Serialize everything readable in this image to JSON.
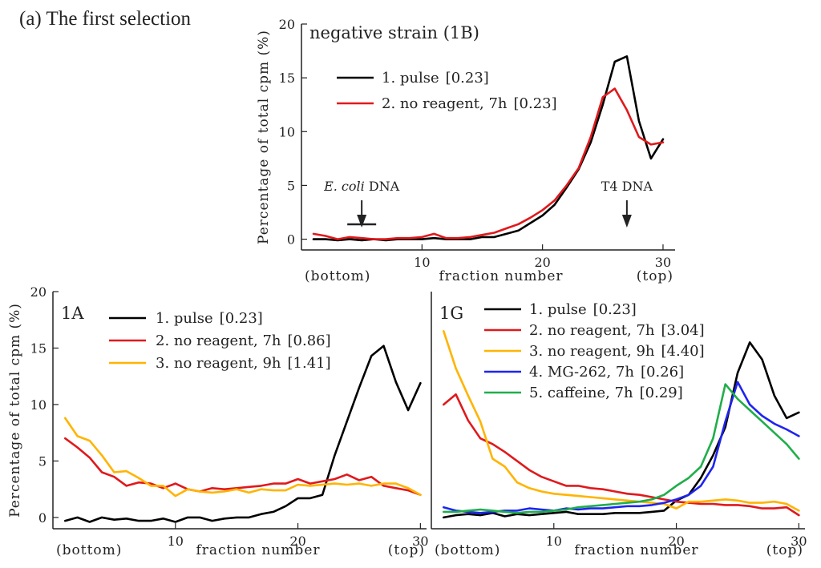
{
  "figure_title": "(a) The first selection",
  "chart_data": [
    {
      "id": "1B",
      "type": "line",
      "title": "negative strain (1B)",
      "ylabel": "Percentage of total cpm (%)",
      "xlabel": "fraction number",
      "x_left_note": "(bottom)",
      "x_right_note": "(top)",
      "xlim": [
        0,
        31
      ],
      "ylim": [
        -1,
        20
      ],
      "xticks": [
        10,
        20,
        30
      ],
      "yticks": [
        0,
        5,
        10,
        15,
        20
      ],
      "legend": {
        "location": "upper-left",
        "entries": [
          {
            "color": "#000000",
            "text": "1. pulse",
            "value": "[0.23]"
          },
          {
            "color": "#e0191c",
            "text": "2. no reagent, 7h",
            "value": "[0.23]"
          }
        ]
      },
      "annotations": [
        {
          "italic": "E. coli",
          "text": " DNA",
          "x": 5
        },
        {
          "italic": "",
          "text": "T4 DNA",
          "x": 27
        }
      ],
      "x": [
        1,
        2,
        3,
        4,
        5,
        6,
        7,
        8,
        9,
        10,
        11,
        12,
        13,
        14,
        15,
        16,
        17,
        18,
        19,
        20,
        21,
        22,
        23,
        24,
        25,
        26,
        27,
        28,
        29,
        30
      ],
      "series": [
        {
          "name": "1. pulse",
          "color": "#000000",
          "values": [
            0,
            0,
            -0.1,
            0,
            -0.1,
            0,
            -0.1,
            0,
            0,
            0,
            0.1,
            0,
            0,
            0,
            0.2,
            0.2,
            0.5,
            0.8,
            1.5,
            2.2,
            3.2,
            4.8,
            6.5,
            9,
            12.5,
            16.5,
            17,
            11,
            7.5,
            9.3
          ]
        },
        {
          "name": "2. no reagent, 7h",
          "color": "#e0191c",
          "values": [
            0.5,
            0.3,
            0,
            0.2,
            0.1,
            0,
            0,
            0.1,
            0.1,
            0.2,
            0.5,
            0.1,
            0.1,
            0.2,
            0.4,
            0.6,
            1,
            1.4,
            2,
            2.7,
            3.6,
            5,
            6.6,
            9.5,
            13.2,
            14,
            12,
            9.5,
            8.8,
            9
          ]
        }
      ]
    },
    {
      "id": "1A",
      "type": "line",
      "title": "1A",
      "ylabel": "Percentage of total cpm (%)",
      "xlabel": "fraction number",
      "x_left_note": "(bottom)",
      "x_right_note": "(top)",
      "xlim": [
        0,
        30.5
      ],
      "ylim": [
        -1,
        20
      ],
      "xticks": [
        10,
        20,
        30
      ],
      "yticks": [
        0,
        5,
        10,
        15,
        20
      ],
      "legend": {
        "location": "upper-center",
        "entries": [
          {
            "color": "#000000",
            "text": "1. pulse",
            "value": "[0.23]"
          },
          {
            "color": "#e0191c",
            "text": "2. no reagent, 7h",
            "value": "[0.86]"
          },
          {
            "color": "#ffb400",
            "text": "3. no reagent, 9h",
            "value": "[1.41]"
          }
        ]
      },
      "x": [
        1,
        2,
        3,
        4,
        5,
        6,
        7,
        8,
        9,
        10,
        11,
        12,
        13,
        14,
        15,
        16,
        17,
        18,
        19,
        20,
        21,
        22,
        23,
        24,
        25,
        26,
        27,
        28,
        29,
        30
      ],
      "series": [
        {
          "name": "1. pulse",
          "color": "#000000",
          "values": [
            -0.3,
            0,
            -0.4,
            0,
            -0.2,
            -0.1,
            -0.3,
            -0.3,
            -0.1,
            -0.4,
            0,
            0,
            -0.3,
            -0.1,
            0,
            0,
            0.3,
            0.5,
            1,
            1.7,
            1.7,
            2,
            5.5,
            8.5,
            11.5,
            14.3,
            15.2,
            12,
            9.5,
            11.9
          ]
        },
        {
          "name": "2. no reagent, 7h",
          "color": "#e0191c",
          "values": [
            7,
            6.2,
            5.3,
            4,
            3.6,
            2.8,
            3.1,
            3,
            2.6,
            3,
            2.5,
            2.3,
            2.6,
            2.5,
            2.6,
            2.7,
            2.8,
            3,
            3,
            3.4,
            3,
            3.2,
            3.4,
            3.8,
            3.3,
            3.6,
            2.8,
            2.6,
            2.4,
            2
          ]
        },
        {
          "name": "3. no reagent, 9h",
          "color": "#ffb400",
          "values": [
            8.8,
            7.2,
            6.8,
            5.5,
            4,
            4.1,
            3.5,
            2.8,
            2.8,
            1.9,
            2.5,
            2.3,
            2.2,
            2.3,
            2.5,
            2.2,
            2.5,
            2.4,
            2.4,
            2.9,
            2.8,
            2.9,
            3,
            2.9,
            3,
            2.8,
            3,
            3,
            2.6,
            2
          ]
        }
      ]
    },
    {
      "id": "1G",
      "type": "line",
      "title": "1G",
      "xlabel": "fraction number",
      "x_left_note": "(bottom)",
      "x_right_note": "(top)",
      "xlim": [
        0,
        30.5
      ],
      "ylim": [
        -1,
        20
      ],
      "xticks": [
        10,
        20,
        30
      ],
      "yticks": [],
      "legend": {
        "location": "upper-center",
        "entries": [
          {
            "color": "#000000",
            "text": "1. pulse",
            "value": "[0.23]"
          },
          {
            "color": "#e0191c",
            "text": "2. no reagent, 7h",
            "value": "[3.04]"
          },
          {
            "color": "#ffb400",
            "text": "3. no reagent, 9h",
            "value": "[4.40]"
          },
          {
            "color": "#1e24f0",
            "text": "4. MG-262, 7h",
            "value": "[0.26]"
          },
          {
            "color": "#1fae4a",
            "text": "5. caffeine, 7h",
            "value": "[0.29]"
          }
        ]
      },
      "x": [
        1,
        2,
        3,
        4,
        5,
        6,
        7,
        8,
        9,
        10,
        11,
        12,
        13,
        14,
        15,
        16,
        17,
        18,
        19,
        20,
        21,
        22,
        23,
        24,
        25,
        26,
        27,
        28,
        29,
        30
      ],
      "series": [
        {
          "name": "1. pulse",
          "color": "#000000",
          "values": [
            0,
            0.2,
            0.3,
            0.2,
            0.4,
            0.1,
            0.3,
            0.2,
            0.3,
            0.4,
            0.5,
            0.3,
            0.3,
            0.3,
            0.4,
            0.4,
            0.4,
            0.5,
            0.6,
            1.5,
            2,
            3.5,
            5.5,
            8,
            12.8,
            15.5,
            14,
            10.8,
            8.8,
            9.3
          ]
        },
        {
          "name": "2. no reagent, 7h",
          "color": "#e0191c",
          "values": [
            10,
            10.9,
            8.6,
            7,
            6.5,
            5.8,
            5,
            4.2,
            3.6,
            3.2,
            2.8,
            2.8,
            2.6,
            2.5,
            2.3,
            2.1,
            2,
            1.8,
            1.6,
            1.4,
            1.3,
            1.2,
            1.2,
            1.1,
            1.1,
            1,
            0.8,
            0.8,
            0.9,
            0.2
          ]
        },
        {
          "name": "3. no reagent, 9h",
          "color": "#ffb400",
          "values": [
            16.5,
            13.2,
            10.8,
            8.5,
            5.2,
            4.5,
            3.1,
            2.6,
            2.3,
            2.1,
            2,
            1.9,
            1.8,
            1.7,
            1.6,
            1.5,
            1.4,
            1.3,
            1.2,
            0.8,
            1.4,
            1.4,
            1.5,
            1.6,
            1.5,
            1.3,
            1.3,
            1.4,
            1.2,
            0.6
          ]
        },
        {
          "name": "4. MG-262, 7h",
          "color": "#1e24f0",
          "values": [
            0.9,
            0.6,
            0.5,
            0.4,
            0.5,
            0.6,
            0.6,
            0.8,
            0.7,
            0.6,
            0.8,
            0.7,
            0.8,
            0.8,
            0.9,
            1,
            1,
            1.1,
            1.3,
            1.6,
            2,
            2.8,
            4.5,
            8.5,
            12,
            10,
            9,
            8.3,
            7.8,
            7.2
          ]
        },
        {
          "name": "5. caffeine, 7h",
          "color": "#1fae4a",
          "values": [
            0.5,
            0.5,
            0.6,
            0.7,
            0.6,
            0.5,
            0.4,
            0.5,
            0.5,
            0.6,
            0.7,
            0.9,
            1,
            1.1,
            1.2,
            1.3,
            1.4,
            1.6,
            2,
            2.8,
            3.5,
            4.5,
            7,
            11.8,
            10.5,
            9.5,
            8.5,
            7.5,
            6.5,
            5.2
          ]
        }
      ]
    }
  ]
}
